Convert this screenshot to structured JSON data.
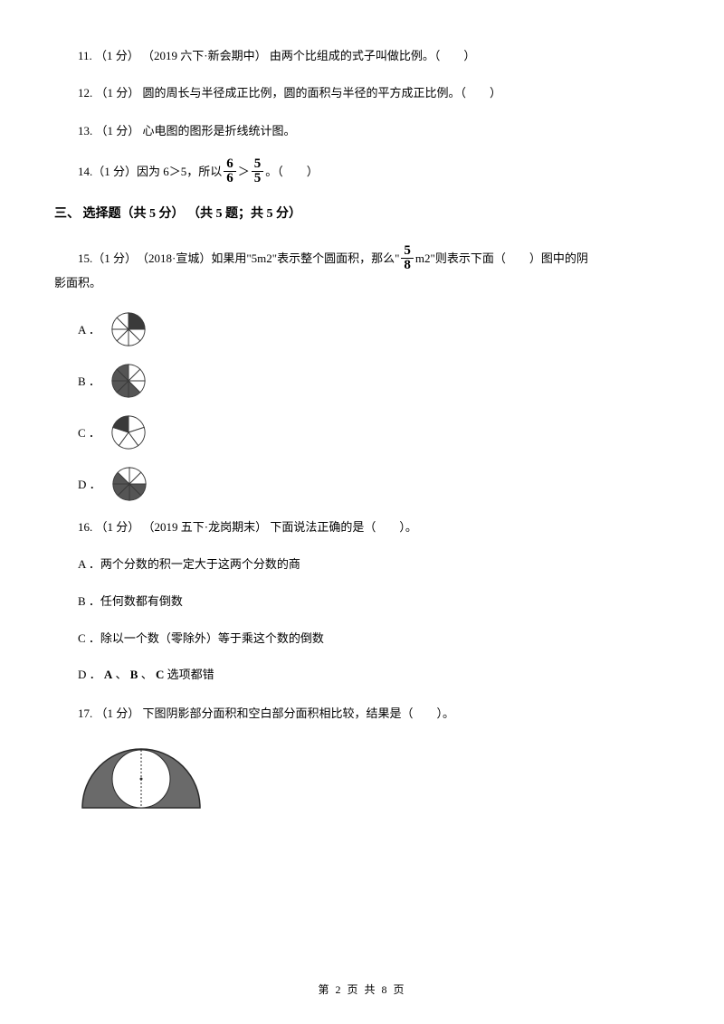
{
  "q11": {
    "num": "11.",
    "points": "（1 分）",
    "source": "（2019 六下·新会期中）",
    "text": "由两个比组成的式子叫做比例。（　　）"
  },
  "q12": {
    "num": "12.",
    "points": "（1 分）",
    "text": " 圆的周长与半径成正比例，圆的面积与半径的平方成正比例。（　　）"
  },
  "q13": {
    "num": "13.",
    "points": "（1 分）",
    "text": " 心电图的图形是折线统计图。"
  },
  "q14": {
    "num": "14.",
    "points": "（1 分）",
    "text_before": " 因为 6＞5，所以 ",
    "frac1_num": "6",
    "frac1_den": "6",
    "gt": " ＞ ",
    "frac2_num": "5",
    "frac2_den": "5",
    "text_after": " 。（　　）"
  },
  "section3": {
    "title": "三、 选择题（共 5 分） （共 5 题；共 5 分）"
  },
  "q15": {
    "num": "15.",
    "points": "（1 分）",
    "source": "（2018·宣城）",
    "text_before": "如果用\"5m2\"表示整个圆面积，那么\" ",
    "frac_num": "5",
    "frac_den": "8",
    "text_after": " m2\"则表示下面（　　）图中的阴",
    "text_line2": "影面积。",
    "optA": "A ．",
    "optB": "B ．",
    "optC": "C ．",
    "optD": "D ．",
    "circleA": {
      "slices": 8,
      "shaded": [
        0,
        1
      ],
      "stroke": "#3a3a3a",
      "fill": "#3a3a3a"
    },
    "circleB": {
      "slices": 8,
      "shaded": [
        3,
        4,
        5,
        6,
        7
      ],
      "stroke": "#3a3a3a",
      "fill": "#555555"
    },
    "circleC": {
      "slices": 5,
      "shaded": [
        4
      ],
      "stroke": "#3a3a3a",
      "fill": "#3a3a3a"
    },
    "circleD": {
      "slices": 8,
      "shaded": [
        2,
        3,
        4,
        5,
        6
      ],
      "stroke": "#3a3a3a",
      "fill": "#555555"
    }
  },
  "q16": {
    "num": "16.",
    "points": "（1 分）",
    "source": "（2019 五下·龙岗期末）",
    "text": "下面说法正确的是（　　）。",
    "optA": "A ．两个分数的积一定大于这两个分数的商",
    "optB": "B ．任何数都有倒数",
    "optC": "C ．除以一个数（零除外）等于乘这个数的倒数",
    "optD_prefix": "D ．",
    "optD_A": "A",
    "optD_sep1": " 、 ",
    "optD_B": "B",
    "optD_sep2": " 、 ",
    "optD_C": "C",
    "optD_suffix": " 选项都错"
  },
  "q17": {
    "num": "17.",
    "points": "（1 分）",
    "text": " 下图阴影部分面积和空白部分面积相比较，结果是（　　）。",
    "diagram": {
      "width": 140,
      "height": 75,
      "outer_fill": "#6a6a6a",
      "inner_fill": "#ffffff",
      "stroke": "#2a2a2a"
    }
  },
  "footer": {
    "text": "第 2 页 共 8 页"
  }
}
